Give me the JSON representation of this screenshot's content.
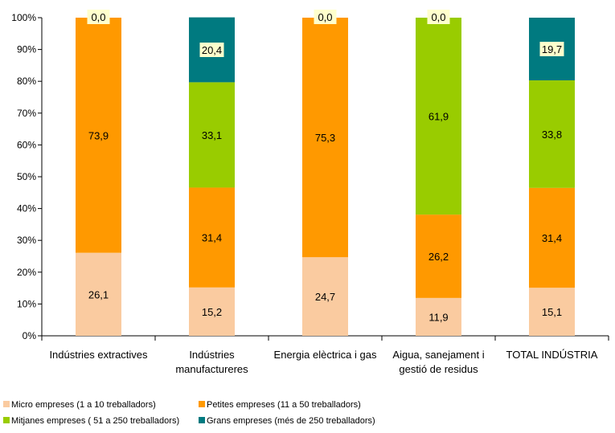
{
  "chart_data": {
    "type": "bar",
    "stacked": true,
    "normalized": true,
    "categories": [
      [
        "Indústries extractives"
      ],
      [
        "Indústries",
        "manufactureres"
      ],
      [
        "Energia elèctrica i gas"
      ],
      [
        "Aigua, sanejament i",
        "gestió de residus"
      ],
      [
        "TOTAL INDÚSTRIA"
      ]
    ],
    "series": [
      {
        "name": "Micro empreses (1 a 10 treballadors)",
        "color": "#FACBA0",
        "values": [
          26.1,
          15.2,
          24.7,
          11.9,
          15.1
        ],
        "labels": [
          "26,1",
          "15,2",
          "24,7",
          "11,9",
          "15,1"
        ]
      },
      {
        "name": "Petites empreses (11 a 50 treballadors)",
        "color": "#FF9900",
        "values": [
          73.9,
          31.4,
          75.3,
          26.2,
          31.4
        ],
        "labels": [
          "73,9",
          "31,4",
          "75,3",
          "26,2",
          "31,4"
        ]
      },
      {
        "name": "Mitjanes empreses ( 51 a 250 treballadors)",
        "color": "#99CC00",
        "values": [
          0.0,
          33.1,
          0.0,
          61.9,
          33.8
        ],
        "labels": [
          "0,0",
          "33,1",
          "0,0",
          "61,9",
          "33,8"
        ]
      },
      {
        "name": "Grans empreses (més de 250 treballadors)",
        "color": "#007A80",
        "values": [
          0.0,
          20.4,
          0.0,
          0.0,
          19.7
        ],
        "labels": [
          "0,0",
          "20,4",
          "0,0",
          "0,0",
          "19,7"
        ]
      }
    ],
    "zero_labels": [
      {
        "category": 0,
        "series": 2,
        "label": "0,0"
      },
      {
        "category": 2,
        "series": 2,
        "label": "0,0"
      },
      {
        "category": 3,
        "series": 3,
        "label": "0,0"
      }
    ],
    "yticks": [
      "0%",
      "10%",
      "20%",
      "30%",
      "40%",
      "50%",
      "60%",
      "70%",
      "80%",
      "90%",
      "100%"
    ],
    "ylim": [
      0,
      100
    ],
    "grid": false,
    "legend_position": "bottom-left",
    "title": "",
    "xlabel": "",
    "ylabel": ""
  }
}
